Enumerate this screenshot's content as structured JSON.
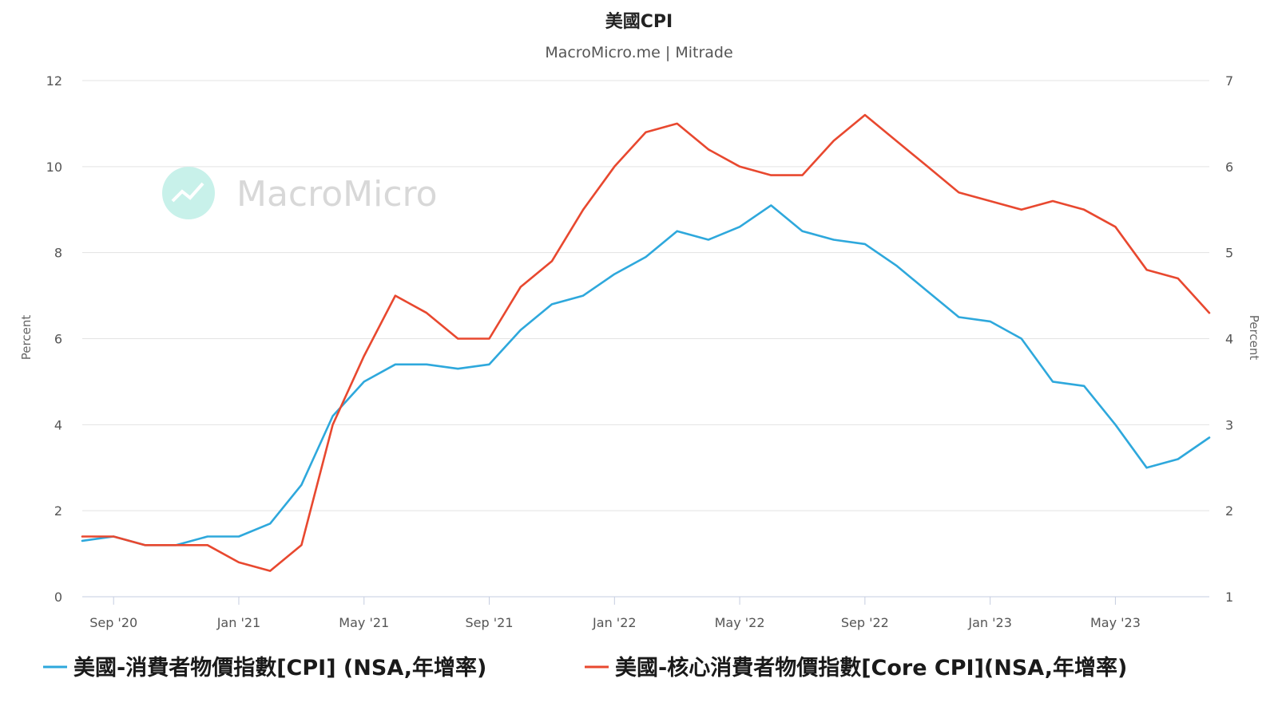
{
  "chart_data": {
    "type": "line",
    "title": "美國CPI",
    "subtitle": "MacroMicro.me | Mitrade",
    "watermark": "MacroMicro",
    "x": [
      "2020-08",
      "2020-09",
      "2020-10",
      "2020-11",
      "2020-12",
      "2021-01",
      "2021-02",
      "2021-03",
      "2021-04",
      "2021-05",
      "2021-06",
      "2021-07",
      "2021-08",
      "2021-09",
      "2021-10",
      "2021-11",
      "2021-12",
      "2022-01",
      "2022-02",
      "2022-03",
      "2022-04",
      "2022-05",
      "2022-06",
      "2022-07",
      "2022-08",
      "2022-09",
      "2022-10",
      "2022-11",
      "2022-12",
      "2023-01",
      "2023-02",
      "2023-03",
      "2023-04",
      "2023-05",
      "2023-06",
      "2023-07",
      "2023-08"
    ],
    "x_ticks": [
      {
        "label": "Sep '20",
        "at": "2020-09"
      },
      {
        "label": "Jan '21",
        "at": "2021-01"
      },
      {
        "label": "May '21",
        "at": "2021-05"
      },
      {
        "label": "Sep '21",
        "at": "2021-09"
      },
      {
        "label": "Jan '22",
        "at": "2022-01"
      },
      {
        "label": "May '22",
        "at": "2022-05"
      },
      {
        "label": "Sep '22",
        "at": "2022-09"
      },
      {
        "label": "Jan '23",
        "at": "2023-01"
      },
      {
        "label": "May '23",
        "at": "2023-05"
      }
    ],
    "y_left": {
      "label": "Percent",
      "ticks": [
        0,
        2,
        4,
        6,
        8,
        10,
        12
      ],
      "range": [
        0,
        12
      ]
    },
    "y_right": {
      "label": "Percent",
      "ticks": [
        1,
        2,
        3,
        4,
        5,
        6,
        7
      ],
      "range": [
        1,
        7
      ]
    },
    "grid": true,
    "legend_position": "bottom",
    "series": [
      {
        "name": "美國-消費者物價指數[CPI] (NSA,年增率)",
        "axis": "left",
        "color": "#2ea8dc",
        "values": [
          1.3,
          1.4,
          1.2,
          1.2,
          1.4,
          1.4,
          1.7,
          2.6,
          4.2,
          5.0,
          5.4,
          5.4,
          5.3,
          5.4,
          6.2,
          6.8,
          7.0,
          7.5,
          7.9,
          8.5,
          8.3,
          8.6,
          9.1,
          8.5,
          8.3,
          8.2,
          7.7,
          7.1,
          6.5,
          6.4,
          6.0,
          5.0,
          4.9,
          4.0,
          3.0,
          3.2,
          3.7
        ]
      },
      {
        "name": "美國-核心消費者物價指數[Core CPI](NSA,年增率)",
        "axis": "right",
        "color": "#e8482f",
        "values": [
          1.7,
          1.7,
          1.6,
          1.6,
          1.6,
          1.4,
          1.3,
          1.6,
          3.0,
          3.8,
          4.5,
          4.3,
          4.0,
          4.0,
          4.6,
          4.9,
          5.5,
          6.0,
          6.4,
          6.5,
          6.2,
          6.0,
          5.9,
          5.9,
          6.3,
          6.6,
          6.3,
          6.0,
          5.7,
          5.6,
          5.5,
          5.6,
          5.5,
          5.3,
          4.8,
          4.7,
          4.3
        ]
      }
    ]
  }
}
